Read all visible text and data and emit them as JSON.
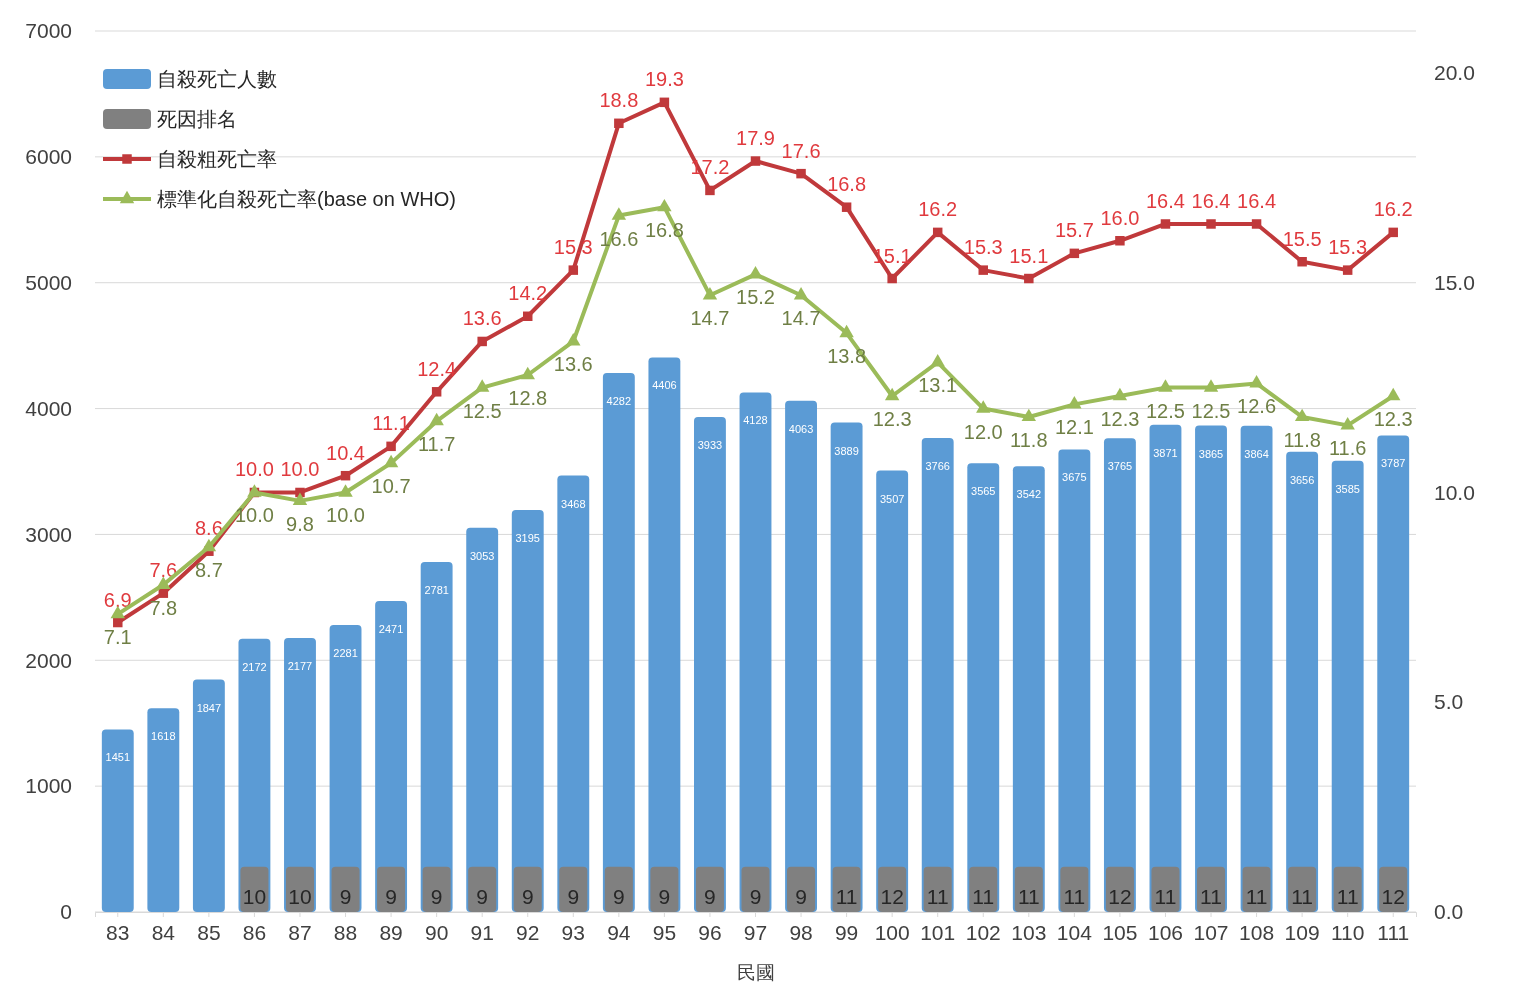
{
  "chart_data": {
    "type": "bar",
    "xlabel": "民國",
    "categories": [
      "83",
      "84",
      "85",
      "86",
      "87",
      "88",
      "89",
      "90",
      "91",
      "92",
      "93",
      "94",
      "95",
      "96",
      "97",
      "98",
      "99",
      "100",
      "101",
      "102",
      "103",
      "104",
      "105",
      "106",
      "107",
      "108",
      "109",
      "110",
      "111"
    ],
    "ylim": [
      0,
      7000
    ],
    "yticks": [
      0,
      1000,
      2000,
      3000,
      4000,
      5000,
      6000,
      7000
    ],
    "y2lim": [
      0,
      21
    ],
    "y2ticks": [
      {
        "value": 0,
        "label": "0.0"
      },
      {
        "value": 5,
        "label": "5.0"
      },
      {
        "value": 10,
        "label": "10.0"
      },
      {
        "value": 15,
        "label": "15.0"
      },
      {
        "value": 20,
        "label": "20.0"
      }
    ],
    "grid": "y",
    "legend": "top left",
    "annotations": [
      "10",
      "10",
      "9",
      "9",
      "9",
      "9",
      "9",
      "9",
      "9",
      "9",
      "9",
      "9",
      "9",
      "11",
      "12",
      "11",
      "11",
      "11",
      "11",
      "12",
      "11",
      "11",
      "11",
      "11",
      "11",
      "12"
    ],
    "series": [
      {
        "name": "自殺死亡人數",
        "color": "#5b9bd5",
        "values": [
          1451,
          1618,
          1847,
          2172,
          2177,
          2281,
          2471,
          2781,
          3053,
          3195,
          3468,
          4282,
          4406,
          3933,
          4128,
          4063,
          3889,
          3507,
          3766,
          3565,
          3542,
          3675,
          3765,
          3871,
          3865,
          3864,
          3656,
          3585,
          3787
        ],
        "value_labels": [
          "1451",
          "1618",
          "1847",
          "2172",
          "2177",
          "2281",
          "2471",
          "2781",
          "3053",
          "3195",
          "3468",
          "4282",
          "4406",
          "3933",
          "4128",
          "4063",
          "3889",
          "3507",
          "3766",
          "3565",
          "3542",
          "3675",
          "3765",
          "3871",
          "3865",
          "3864",
          "3656",
          "3585",
          "3787"
        ]
      },
      {
        "name": "死因排名",
        "color": "#808080",
        "values": [
          null,
          null,
          null,
          360,
          360,
          360,
          360,
          360,
          360,
          360,
          360,
          360,
          360,
          360,
          360,
          360,
          360,
          360,
          360,
          360,
          360,
          360,
          360,
          360,
          360,
          360,
          360,
          360,
          360
        ]
      },
      {
        "name": "自殺粗死亡率",
        "type": "line",
        "axis": "y2",
        "marker": "square",
        "color": "#c0393b",
        "values": [
          6.9,
          7.6,
          8.6,
          10.0,
          10.0,
          10.4,
          11.1,
          12.4,
          13.6,
          14.2,
          15.3,
          18.8,
          19.3,
          17.2,
          17.9,
          17.6,
          16.8,
          15.1,
          16.2,
          15.3,
          15.1,
          15.7,
          16.0,
          16.4,
          16.4,
          16.4,
          15.5,
          15.3,
          16.2
        ],
        "value_labels": [
          "6.9",
          "7.6",
          "8.6",
          "10.0",
          "10.0",
          "10.4",
          "11.1",
          "12.4",
          "13.6",
          "14.2",
          "15.3",
          "18.8",
          "19.3",
          "17.2",
          "17.9",
          "17.6",
          "16.8",
          "15.1",
          "16.2",
          "15.3",
          "15.1",
          "15.7",
          "16.0",
          "16.4",
          "16.4",
          "16.4",
          "15.5",
          "15.3",
          "16.2"
        ]
      },
      {
        "name": "標準化自殺死亡率(base on WHO)",
        "type": "line",
        "axis": "y2",
        "marker": "triangle",
        "color": "#9bbb59",
        "values": [
          7.1,
          7.8,
          8.7,
          10.0,
          9.8,
          10.0,
          10.7,
          11.7,
          12.5,
          12.8,
          13.6,
          16.6,
          16.8,
          14.7,
          15.2,
          14.7,
          13.8,
          12.3,
          13.1,
          12.0,
          11.8,
          12.1,
          12.3,
          12.5,
          12.5,
          12.6,
          11.8,
          11.6,
          12.3
        ],
        "value_labels": [
          "7.1",
          "7.8",
          "8.7",
          "10.0",
          "9.8",
          "10.0",
          "10.7",
          "11.7",
          "12.5",
          "12.8",
          "13.6",
          "16.6",
          "16.8",
          "14.7",
          "15.2",
          "14.7",
          "13.8",
          "12.3",
          "13.1",
          "12.0",
          "11.8",
          "12.1",
          "12.3",
          "12.5",
          "12.5",
          "12.6",
          "11.8",
          "11.6",
          "12.3"
        ]
      }
    ]
  }
}
